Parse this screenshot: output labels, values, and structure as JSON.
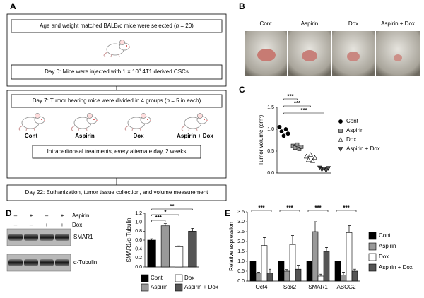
{
  "labels": [
    "A",
    "B",
    "C",
    "D",
    "E"
  ],
  "panel_a": {
    "step1": [
      "Age and weight matched BALB/c mice were selected (",
      "n",
      " = 20)"
    ],
    "step2": [
      "Day 0: Mice were injected with 1 × 10",
      "6",
      " 4T1 derived CSCs"
    ],
    "step3": [
      "Day 7: Tumor bearing mice were divided in 4 groups (",
      "n",
      " = 5 in each)"
    ],
    "groups": [
      "Cont",
      "Aspirin",
      "Dox",
      "Aspirin + Dox"
    ],
    "step4": "Intraperitoneal treatments, every alternate day, 2 weeks",
    "step5": "Day 22: Euthanization, tumor tissue collection, and volume measurement"
  },
  "panel_b": {
    "groups": [
      "Cont",
      "Aspirin",
      "Dox",
      "Aspirin + Dox"
    ]
  },
  "panel_d_blot": {
    "rows": [
      {
        "name": "Aspirin",
        "signs": [
          "–",
          "+",
          "–",
          "+"
        ]
      },
      {
        "name": "Dox",
        "signs": [
          "–",
          "–",
          "+",
          "+"
        ]
      }
    ],
    "bands": [
      "SMAR1",
      "α-Tubulin"
    ]
  },
  "chart_data": [
    {
      "type": "scatter",
      "ylabel": "Tumor volume (cm³)",
      "series": [
        {
          "name": "Cont",
          "color": "#000000",
          "marker": "circle",
          "values": [
            1.05,
            0.95,
            0.85,
            1.0,
            0.9
          ]
        },
        {
          "name": "Aspirin",
          "color": "#999999",
          "marker": "square",
          "values": [
            0.62,
            0.58,
            0.65,
            0.55,
            0.6
          ]
        },
        {
          "name": "Dox",
          "color": "#ffffff",
          "marker": "triangle",
          "values": [
            0.38,
            0.3,
            0.42,
            0.28,
            0.35
          ]
        },
        {
          "name": "Aspirin + Dox",
          "color": "#555555",
          "marker": "down-triangle",
          "values": [
            0.12,
            0.08,
            0.1,
            0.06,
            0.11
          ]
        }
      ],
      "ylim": [
        0,
        1.5
      ],
      "yticks": [
        {
          "value": 0,
          "label": "0.0"
        },
        {
          "value": 0.5,
          "label": "0.5"
        },
        {
          "value": 1,
          "label": "1.0"
        },
        {
          "value": 1.5,
          "label": "1.5"
        }
      ],
      "annotations": [
        "***",
        "***",
        "***"
      ]
    },
    {
      "type": "bar",
      "ylabel": "SMAR1/α-Tubulin",
      "categories": [
        "Cont",
        "Aspirin",
        "Dox",
        "Aspirin + Dox"
      ],
      "values": [
        0.6,
        0.92,
        0.45,
        0.8
      ],
      "errors": [
        0.03,
        0.05,
        0.02,
        0.06
      ],
      "colors": [
        "#000000",
        "#999999",
        "#ffffff",
        "#555555"
      ],
      "ylim": [
        0,
        1.2
      ],
      "yticks": [
        {
          "value": 0,
          "label": "0.0"
        },
        {
          "value": 0.2,
          "label": "0.2"
        },
        {
          "value": 0.4,
          "label": "0.4"
        },
        {
          "value": 0.6,
          "label": "0.6"
        },
        {
          "value": 0.8,
          "label": "0.8"
        },
        {
          "value": 1,
          "label": "1.0"
        },
        {
          "value": 1.2,
          "label": "1.2"
        }
      ],
      "annotations": [
        "***",
        "*",
        "**"
      ]
    },
    {
      "type": "bar",
      "ylabel": "Relative expression",
      "categories": [
        "Oct4",
        "Sox2",
        "SMAR1",
        "ABCG2"
      ],
      "series": [
        {
          "name": "Cont",
          "color": "#000000",
          "values": [
            1,
            1,
            1,
            1
          ],
          "errors": [
            0,
            0,
            0,
            0
          ]
        },
        {
          "name": "Aspirin",
          "color": "#999999",
          "values": [
            0.4,
            0.5,
            2.5,
            0.3
          ],
          "errors": [
            0.05,
            0.08,
            0.5,
            0.15
          ]
        },
        {
          "name": "Dox",
          "color": "#ffffff",
          "values": [
            1.8,
            1.85,
            0.25,
            2.45
          ],
          "errors": [
            0.4,
            0.45,
            0.1,
            0.35
          ]
        },
        {
          "name": "Aspirin + Dox",
          "color": "#555555",
          "values": [
            0.4,
            0.6,
            1.5,
            0.5
          ],
          "errors": [
            0.2,
            0.2,
            0.2,
            0.1
          ]
        }
      ],
      "ylim": [
        0,
        3.5
      ],
      "yticks": [
        {
          "value": 0,
          "label": "0.0"
        },
        {
          "value": 0.5,
          "label": "0.5"
        },
        {
          "value": 1,
          "label": "1.0"
        },
        {
          "value": 1.5,
          "label": "1.5"
        },
        {
          "value": 2,
          "label": "2.0"
        },
        {
          "value": 2.5,
          "label": "2.5"
        },
        {
          "value": 3,
          "label": "3.0"
        },
        {
          "value": 3.5,
          "label": "3.5"
        }
      ],
      "annotations": [
        "***",
        "***",
        "***",
        "***"
      ]
    }
  ]
}
